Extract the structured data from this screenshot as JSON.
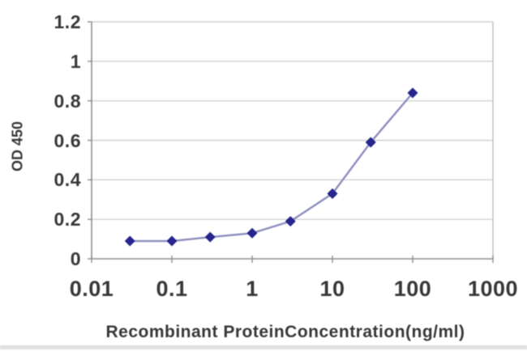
{
  "chart_data": {
    "type": "line",
    "title": "",
    "xlabel": "Recombinant ProteinConcentration(ng/ml)",
    "ylabel": "OD 450",
    "x_scale": "log",
    "x": [
      0.03,
      0.1,
      0.3,
      1,
      3,
      10,
      30,
      100
    ],
    "y": [
      0.09,
      0.09,
      0.11,
      0.13,
      0.19,
      0.33,
      0.59,
      0.84
    ],
    "x_ticks": [
      0.01,
      0.1,
      1,
      10,
      100,
      1000
    ],
    "x_tick_labels": [
      "0.01",
      "0.1",
      "1",
      "10",
      "100",
      "1000"
    ],
    "y_ticks": [
      0,
      0.2,
      0.4,
      0.6,
      0.8,
      1,
      1.2
    ],
    "y_tick_labels": [
      "0",
      "0.2",
      "0.4",
      "0.6",
      "0.8",
      "1",
      "1.2"
    ],
    "xlim": [
      0.01,
      1000
    ],
    "ylim": [
      0,
      1.2
    ],
    "grid": "horizontal",
    "legend": "none",
    "marker": "diamond",
    "colors": {
      "line": "#8d8dbe",
      "marker": "#26268e",
      "gridline": "#c9c9c9",
      "frame": "#bdbdbd",
      "axis": "#8f8f8f",
      "text": "#383838"
    }
  }
}
